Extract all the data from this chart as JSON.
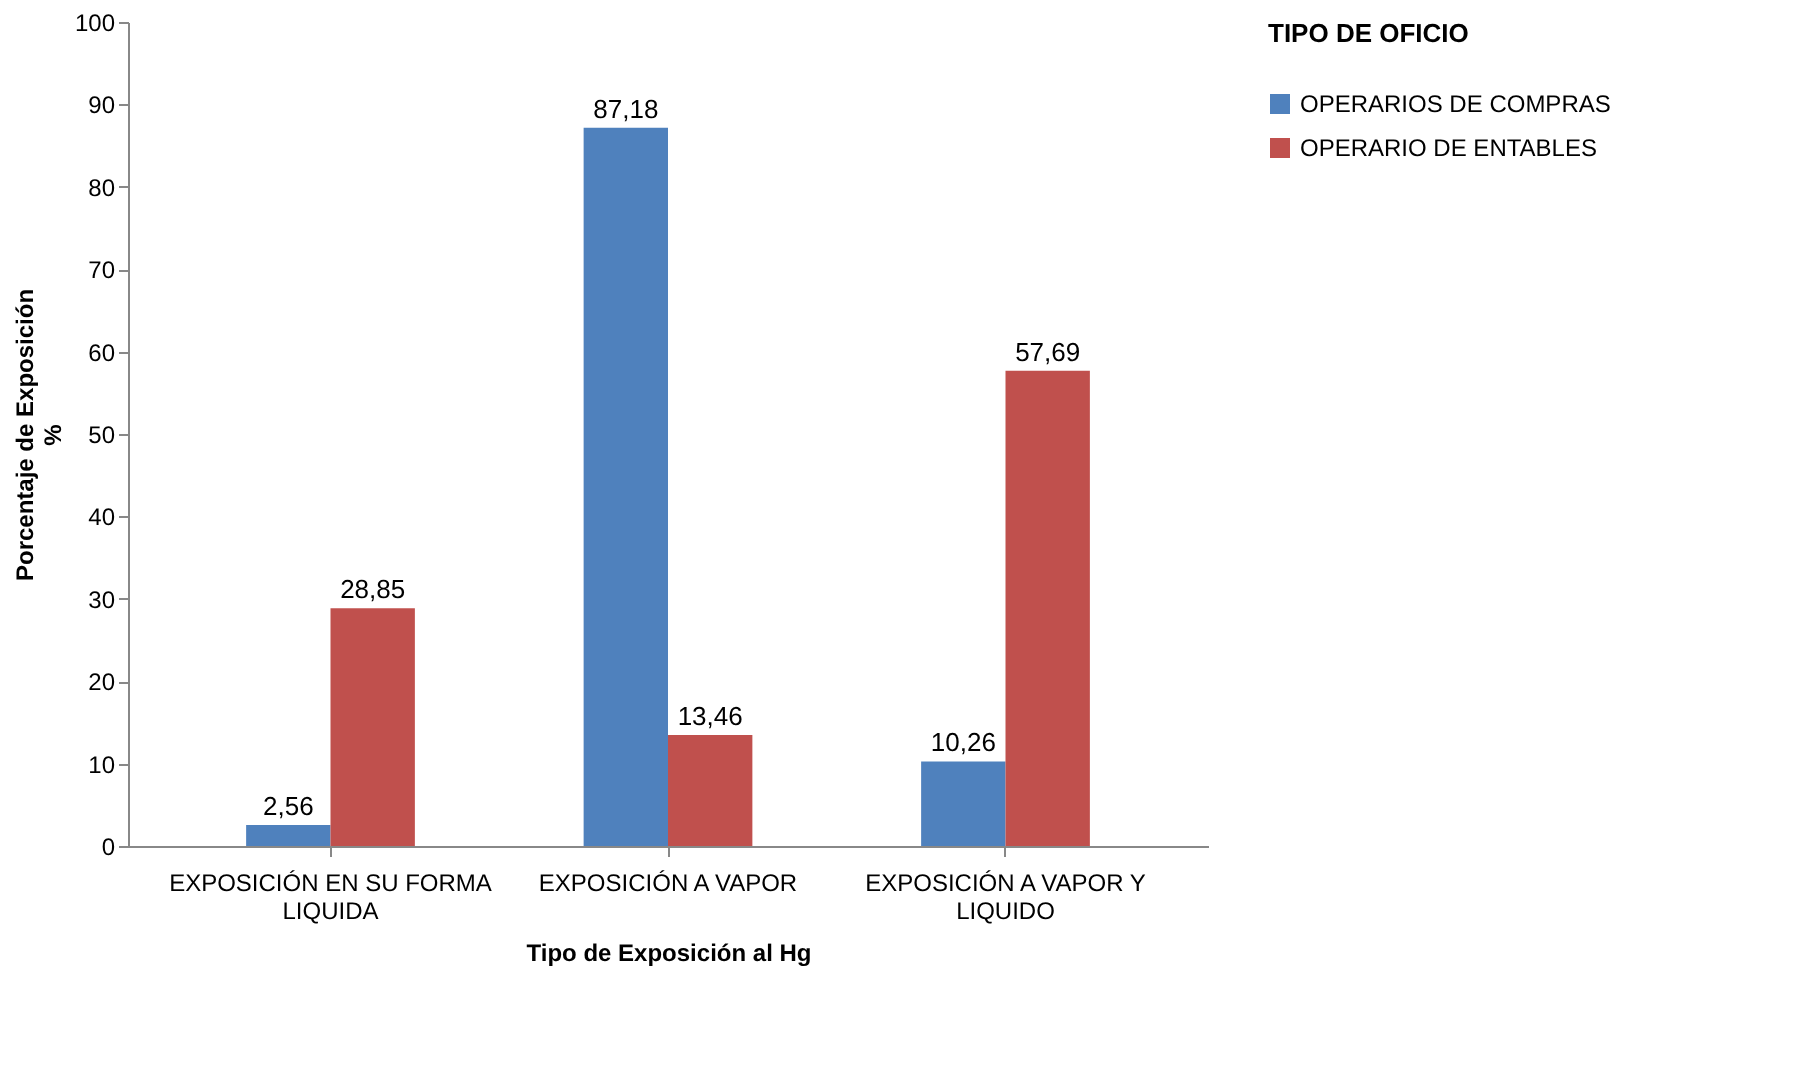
{
  "chart_data": {
    "type": "bar",
    "xlabel": "Tipo de Exposición al Hg",
    "ylabel": "Porcentaje de Exposición\n%",
    "legend_title": "TIPO DE OFICIO",
    "categories": [
      "EXPOSICIÓN EN SU FORMA LIQUIDA",
      "EXPOSICIÓN A VAPOR",
      "EXPOSICIÓN A VAPOR Y LIQUIDO"
    ],
    "series": [
      {
        "name": "OPERARIOS DE COMPRAS",
        "color": "#4f81bd",
        "values": [
          2.56,
          87.18,
          10.26
        ],
        "value_labels": [
          "2,56",
          "87,18",
          "10,26"
        ]
      },
      {
        "name": "OPERARIO DE ENTABLES",
        "color": "#c0504d",
        "values": [
          28.85,
          13.46,
          57.69
        ],
        "value_labels": [
          "28,85",
          "13,46",
          "57,69"
        ]
      }
    ],
    "ylim": [
      0,
      100
    ],
    "yticks": [
      0,
      10,
      20,
      30,
      40,
      50,
      60,
      70,
      80,
      90,
      100
    ],
    "grid": false,
    "legend": "right"
  }
}
